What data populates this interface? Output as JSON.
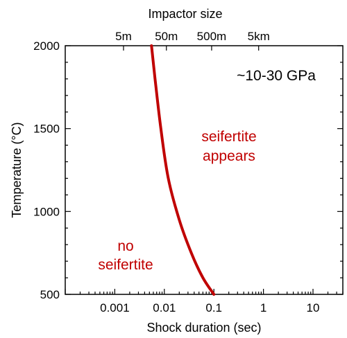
{
  "chart_data": {
    "type": "line",
    "xlabel": "Shock duration (sec)",
    "ylabel": "Temperature (°C)",
    "top_axis_label": "Impactor size",
    "x_scale": "log",
    "xlim": [
      0.0001,
      40
    ],
    "ylim": [
      500,
      2000
    ],
    "x_ticks": [
      {
        "value": 0.001,
        "label": "0.001"
      },
      {
        "value": 0.01,
        "label": "0.01"
      },
      {
        "value": 0.1,
        "label": "0.1"
      },
      {
        "value": 1,
        "label": "1"
      },
      {
        "value": 10,
        "label": "10"
      }
    ],
    "y_ticks": [
      {
        "value": 500,
        "label": "500"
      },
      {
        "value": 1000,
        "label": "1000"
      },
      {
        "value": 1500,
        "label": "1500"
      },
      {
        "value": 2000,
        "label": "2000"
      }
    ],
    "top_ticks": [
      {
        "value": 0.0015,
        "label": "5m"
      },
      {
        "value": 0.011,
        "label": "50m"
      },
      {
        "value": 0.09,
        "label": "500m"
      },
      {
        "value": 0.8,
        "label": "5km"
      }
    ],
    "grid": false,
    "series": [
      {
        "color": "#c00000",
        "points": [
          {
            "x": 0.0055,
            "y": 2000
          },
          {
            "x": 0.0065,
            "y": 1800
          },
          {
            "x": 0.0085,
            "y": 1500
          },
          {
            "x": 0.012,
            "y": 1200
          },
          {
            "x": 0.02,
            "y": 950
          },
          {
            "x": 0.035,
            "y": 750
          },
          {
            "x": 0.06,
            "y": 600
          },
          {
            "x": 0.1,
            "y": 500
          }
        ]
      }
    ],
    "annotations": [
      {
        "text": "~10-30 GPa",
        "color": "#000000"
      },
      {
        "text": "seifertite",
        "color": "#c00000"
      },
      {
        "text": "appears",
        "color": "#c00000"
      },
      {
        "text": "no",
        "color": "#c00000"
      },
      {
        "text": "seifertite",
        "color": "#c00000"
      }
    ]
  }
}
